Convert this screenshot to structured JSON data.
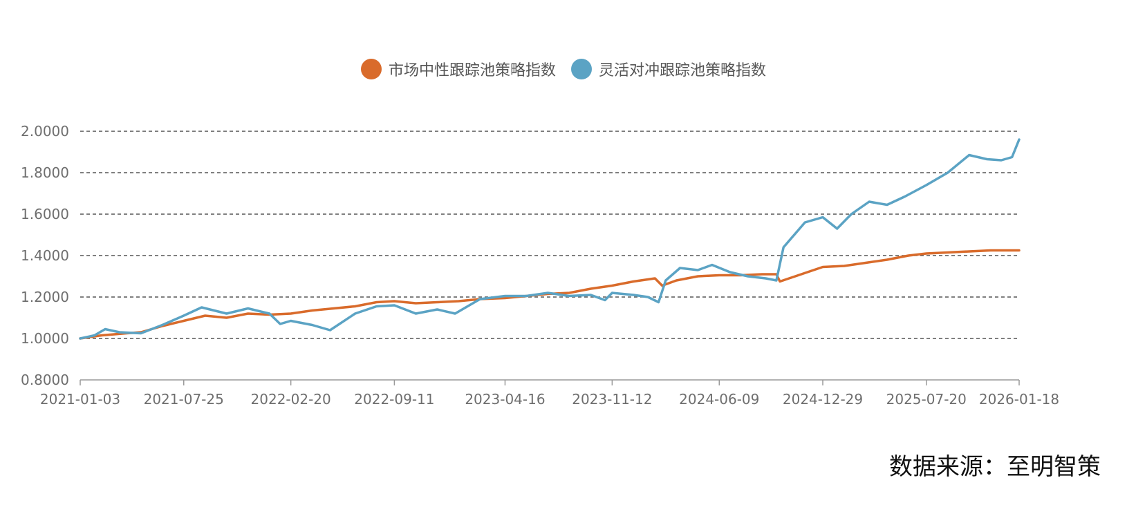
{
  "chart_data": {
    "type": "line",
    "title": "",
    "xlabel": "",
    "ylabel": "",
    "ylim": [
      0.8,
      2.0
    ],
    "y_ticks": [
      "2.0000",
      "1.8000",
      "1.6000",
      "1.4000",
      "1.2000",
      "1.0000",
      "0.8000"
    ],
    "x_range": [
      "2021-01-03",
      "2026-01-18"
    ],
    "x_ticks": [
      "2021-01-03",
      "2021-07-25",
      "2022-02-20",
      "2022-09-11",
      "2023-04-16",
      "2023-11-12",
      "2024-06-09",
      "2024-12-29",
      "2025-07-20",
      "2026-01-18"
    ],
    "grid": true,
    "legend_position": "top-center",
    "series": [
      {
        "name": "市场中性跟踪池策略指数",
        "color": "#d96b2b",
        "points": [
          [
            "2021-01-03",
            1.0
          ],
          [
            "2021-02-14",
            1.015
          ],
          [
            "2021-04-04",
            1.025
          ],
          [
            "2021-05-02",
            1.03
          ],
          [
            "2021-06-13",
            1.06
          ],
          [
            "2021-07-25",
            1.085
          ],
          [
            "2021-09-05",
            1.11
          ],
          [
            "2021-10-17",
            1.1
          ],
          [
            "2021-11-28",
            1.12
          ],
          [
            "2022-01-09",
            1.115
          ],
          [
            "2022-02-20",
            1.12
          ],
          [
            "2022-04-03",
            1.135
          ],
          [
            "2022-05-15",
            1.145
          ],
          [
            "2022-06-26",
            1.155
          ],
          [
            "2022-08-07",
            1.175
          ],
          [
            "2022-09-11",
            1.18
          ],
          [
            "2022-10-23",
            1.17
          ],
          [
            "2022-12-04",
            1.175
          ],
          [
            "2023-01-15",
            1.18
          ],
          [
            "2023-02-26",
            1.19
          ],
          [
            "2023-04-16",
            1.195
          ],
          [
            "2023-05-28",
            1.205
          ],
          [
            "2023-07-09",
            1.215
          ],
          [
            "2023-08-20",
            1.22
          ],
          [
            "2023-10-01",
            1.24
          ],
          [
            "2023-11-12",
            1.255
          ],
          [
            "2023-12-24",
            1.275
          ],
          [
            "2024-01-21",
            1.285
          ],
          [
            "2024-02-04",
            1.29
          ],
          [
            "2024-02-18",
            1.255
          ],
          [
            "2024-03-17",
            1.28
          ],
          [
            "2024-04-28",
            1.3
          ],
          [
            "2024-06-09",
            1.305
          ],
          [
            "2024-07-21",
            1.305
          ],
          [
            "2024-09-01",
            1.31
          ],
          [
            "2024-09-29",
            1.31
          ],
          [
            "2024-10-06",
            1.275
          ],
          [
            "2024-11-17",
            1.31
          ],
          [
            "2024-12-29",
            1.345
          ],
          [
            "2025-02-09",
            1.35
          ],
          [
            "2025-03-23",
            1.365
          ],
          [
            "2025-05-04",
            1.38
          ],
          [
            "2025-06-15",
            1.4
          ],
          [
            "2025-07-20",
            1.41
          ],
          [
            "2025-08-31",
            1.415
          ],
          [
            "2025-10-12",
            1.42
          ],
          [
            "2025-11-23",
            1.425
          ],
          [
            "2026-01-18",
            1.425
          ]
        ]
      },
      {
        "name": "灵活对冲跟踪池策略指数",
        "color": "#5ba3c4",
        "points": [
          [
            "2021-01-03",
            1.0
          ],
          [
            "2021-01-31",
            1.015
          ],
          [
            "2021-02-21",
            1.045
          ],
          [
            "2021-03-21",
            1.03
          ],
          [
            "2021-05-02",
            1.025
          ],
          [
            "2021-06-13",
            1.065
          ],
          [
            "2021-07-25",
            1.11
          ],
          [
            "2021-08-29",
            1.15
          ],
          [
            "2021-10-17",
            1.12
          ],
          [
            "2021-11-28",
            1.145
          ],
          [
            "2022-01-09",
            1.12
          ],
          [
            "2022-01-30",
            1.07
          ],
          [
            "2022-02-20",
            1.085
          ],
          [
            "2022-04-03",
            1.065
          ],
          [
            "2022-05-08",
            1.04
          ],
          [
            "2022-06-26",
            1.12
          ],
          [
            "2022-08-07",
            1.155
          ],
          [
            "2022-09-11",
            1.16
          ],
          [
            "2022-10-23",
            1.12
          ],
          [
            "2022-12-04",
            1.14
          ],
          [
            "2023-01-08",
            1.12
          ],
          [
            "2023-02-26",
            1.19
          ],
          [
            "2023-04-16",
            1.205
          ],
          [
            "2023-05-28",
            1.205
          ],
          [
            "2023-07-09",
            1.22
          ],
          [
            "2023-08-20",
            1.205
          ],
          [
            "2023-10-01",
            1.21
          ],
          [
            "2023-10-29",
            1.185
          ],
          [
            "2023-11-12",
            1.22
          ],
          [
            "2023-12-24",
            1.21
          ],
          [
            "2024-01-21",
            1.2
          ],
          [
            "2024-02-11",
            1.175
          ],
          [
            "2024-02-25",
            1.28
          ],
          [
            "2024-03-24",
            1.34
          ],
          [
            "2024-04-28",
            1.33
          ],
          [
            "2024-05-26",
            1.355
          ],
          [
            "2024-06-30",
            1.32
          ],
          [
            "2024-08-04",
            1.3
          ],
          [
            "2024-09-08",
            1.29
          ],
          [
            "2024-09-29",
            1.28
          ],
          [
            "2024-10-13",
            1.44
          ],
          [
            "2024-11-03",
            1.5
          ],
          [
            "2024-11-24",
            1.56
          ],
          [
            "2024-12-29",
            1.585
          ],
          [
            "2025-01-26",
            1.53
          ],
          [
            "2025-02-23",
            1.6
          ],
          [
            "2025-03-30",
            1.66
          ],
          [
            "2025-05-04",
            1.645
          ],
          [
            "2025-06-08",
            1.685
          ],
          [
            "2025-07-20",
            1.74
          ],
          [
            "2025-08-31",
            1.8
          ],
          [
            "2025-10-12",
            1.885
          ],
          [
            "2025-11-16",
            1.865
          ],
          [
            "2025-12-14",
            1.86
          ],
          [
            "2026-01-04",
            1.875
          ],
          [
            "2026-01-18",
            1.96
          ]
        ]
      }
    ]
  },
  "source_text": "数据来源：至明智策"
}
